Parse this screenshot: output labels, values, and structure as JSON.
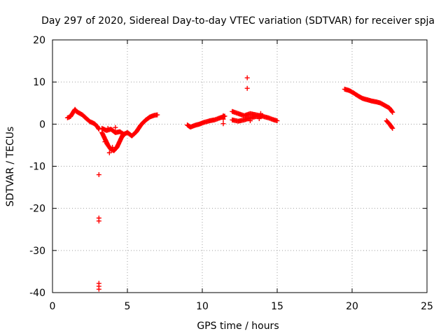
{
  "chart_data": {
    "type": "scatter",
    "title": "Day 297 of 2020, Sidereal Day-to-day VTEC variation (SDTVAR) for receiver spja",
    "xlabel": "GPS time / hours",
    "ylabel": "SDTVAR / TECUs",
    "xlim": [
      0,
      25
    ],
    "ylim": [
      -40,
      20
    ],
    "xticks": [
      0,
      5,
      10,
      15,
      20,
      25
    ],
    "yticks": [
      -40,
      -30,
      -20,
      -10,
      0,
      10,
      20
    ],
    "grid": true,
    "marker": "plus",
    "series": [
      {
        "name": "SDTVAR",
        "color": "#ff0000",
        "segments": [
          {
            "x": [
              1.0,
              1.2,
              1.5,
              1.6,
              2.0,
              2.3,
              2.5,
              2.8,
              3.0,
              3.1
            ],
            "y": [
              1.5,
              1.8,
              3.5,
              3.0,
              2.2,
              1.2,
              0.6,
              0.1,
              -0.6,
              -1.2
            ]
          },
          {
            "x": [
              3.3,
              3.5,
              3.7,
              3.9,
              4.1,
              4.3,
              4.5,
              4.7,
              5.0,
              5.3,
              5.6,
              5.9,
              6.2,
              6.5,
              6.8,
              7.0
            ],
            "y": [
              -2.0,
              -3.5,
              -5.0,
              -6.0,
              -6.3,
              -5.5,
              -4.0,
              -2.5,
              -2.0,
              -2.8,
              -1.8,
              -0.2,
              0.9,
              1.7,
              2.1,
              2.2
            ]
          },
          {
            "x": [
              3.3,
              3.6,
              3.9,
              4.2,
              4.5,
              4.8
            ],
            "y": [
              -1.0,
              -1.5,
              -1.2,
              -2.0,
              -1.8,
              -2.5
            ]
          },
          {
            "x": [
              9.0,
              9.2,
              9.5,
              9.8,
              10.1,
              10.5,
              10.8,
              11.2,
              11.5
            ],
            "y": [
              -0.2,
              -0.7,
              -0.3,
              0.0,
              0.4,
              0.8,
              1.0,
              1.5,
              1.9
            ]
          },
          {
            "x": [
              12.0,
              12.4,
              12.8,
              13.2,
              13.6,
              14.0,
              14.4,
              14.8,
              15.0
            ],
            "y": [
              3.0,
              2.5,
              2.0,
              2.5,
              2.2,
              1.9,
              1.5,
              1.0,
              0.8
            ]
          },
          {
            "x": [
              12.0,
              12.4,
              12.8,
              13.2,
              13.6,
              14.0
            ],
            "y": [
              1.0,
              0.7,
              1.0,
              1.5,
              1.8,
              2.0
            ]
          },
          {
            "x": [
              19.5,
              19.8,
              20.1,
              20.4,
              20.7,
              21.0,
              21.3,
              21.6,
              21.9,
              22.2,
              22.5,
              22.7
            ],
            "y": [
              8.3,
              8.0,
              7.4,
              6.7,
              6.1,
              5.8,
              5.5,
              5.3,
              5.0,
              4.4,
              3.8,
              2.8
            ]
          },
          {
            "x": [
              22.3,
              22.5,
              22.7
            ],
            "y": [
              0.8,
              0.0,
              -1.0
            ]
          }
        ],
        "points": {
          "x": [
            3.1,
            3.1,
            3.1,
            3.1,
            3.1,
            3.1,
            3.5,
            3.8,
            4.0,
            3.7,
            4.2,
            11.4,
            11.4,
            11.4,
            13.0,
            13.0,
            13.2,
            13.8,
            13.9
          ],
          "y": [
            -12.0,
            -22.3,
            -23.0,
            -37.8,
            -38.5,
            -39.2,
            -4.2,
            -6.8,
            -5.5,
            -1.0,
            -0.8,
            2.0,
            1.2,
            0.1,
            11.0,
            8.5,
            0.8,
            1.3,
            2.5
          ]
        }
      }
    ]
  }
}
